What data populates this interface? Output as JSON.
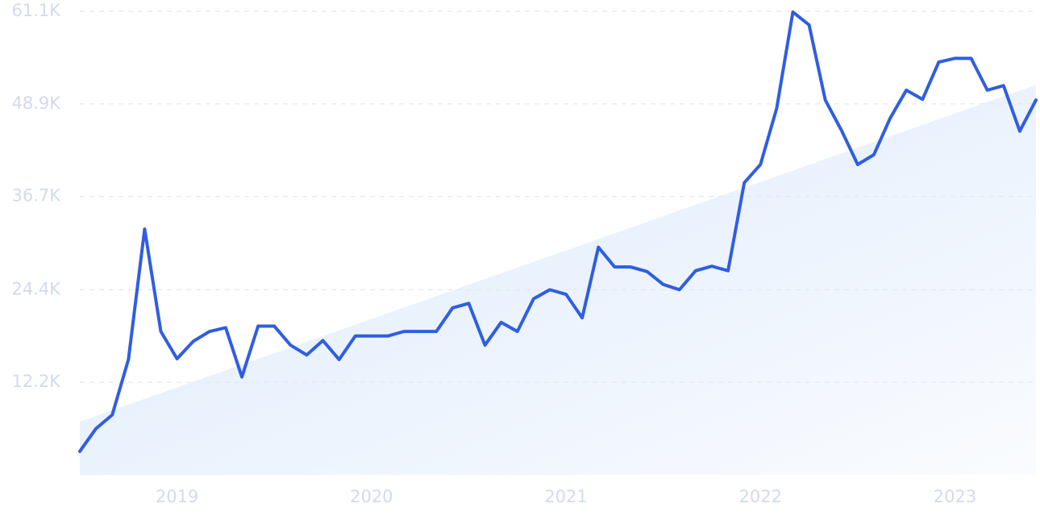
{
  "chart_data": {
    "type": "line",
    "categories": [
      null,
      null,
      null,
      null,
      null,
      null,
      "2019",
      null,
      null,
      null,
      null,
      null,
      null,
      null,
      null,
      null,
      null,
      null,
      "2020",
      null,
      null,
      null,
      null,
      null,
      null,
      null,
      null,
      null,
      null,
      null,
      "2021",
      null,
      null,
      null,
      null,
      null,
      null,
      null,
      null,
      null,
      null,
      null,
      "2022",
      null,
      null,
      null,
      null,
      null,
      null,
      null,
      null,
      null,
      null,
      null,
      "2023",
      null,
      null,
      null,
      null,
      null
    ],
    "series": [
      {
        "color": "#2f5ee0",
        "values": [
          3100,
          6100,
          7900,
          15200,
          32400,
          18900,
          15300,
          17600,
          18900,
          19400,
          12900,
          19600,
          19600,
          17100,
          15800,
          17700,
          15200,
          18300,
          18300,
          18300,
          18900,
          18900,
          18900,
          22000,
          22600,
          17100,
          20100,
          18900,
          23200,
          24400,
          23800,
          20700,
          30000,
          27400,
          27400,
          26800,
          25100,
          24400,
          26900,
          27500,
          26900,
          38500,
          40900,
          48300,
          61000,
          59300,
          49400,
          45400,
          40900,
          42200,
          47000,
          50700,
          49500,
          54400,
          54900,
          54900,
          50700,
          51300,
          45300,
          49400
        ]
      }
    ],
    "trend": {
      "color": "#dce9fb",
      "values": [
        7000,
        51400
      ]
    },
    "ylim": [
      0,
      61100
    ],
    "yticks": [
      {
        "value": 12200,
        "label": "12.2K"
      },
      {
        "value": 24400,
        "label": "24.4K"
      },
      {
        "value": 36700,
        "label": "36.7K"
      },
      {
        "value": 48900,
        "label": "48.9K"
      },
      {
        "value": 61100,
        "label": "61.1K"
      }
    ],
    "grid": true
  }
}
